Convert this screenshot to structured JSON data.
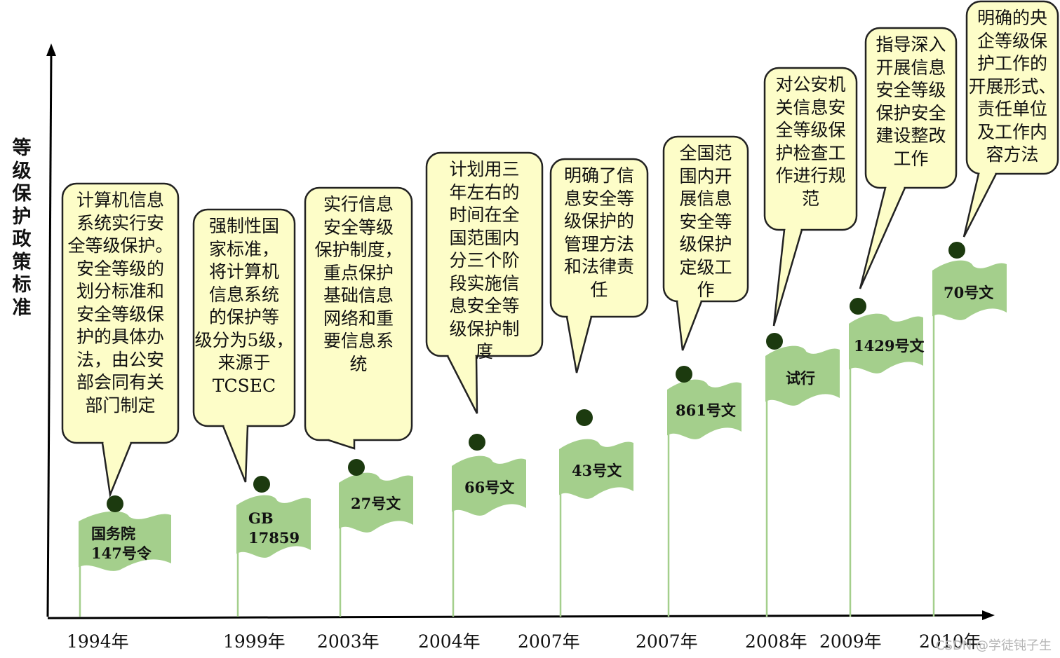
{
  "y_axis_label": "等级保护政策标准",
  "colors": {
    "callout_fill": "#fdfdc8",
    "callout_stroke": "#222222",
    "flag_fill": "#a4cf8c",
    "dot": "#1c3a0f",
    "axis": "#000000",
    "watermark": "#b5b5b5"
  },
  "milestones": [
    {
      "year": "1994年",
      "doc": "国务院\n147号令",
      "callout": "计算机信息\n系统实行安\n全等级保护。\n安全等级的\n划分标准和\n安全等级保\n护的具体办\n法，由公安\n部会同有关\n部门制定"
    },
    {
      "year": "1999年",
      "doc": "GB\n17859",
      "callout": "强制性国\n家标准，\n将计算机\n信息系统\n的保护等\n级分为5级，\n来源于\nTCSEC"
    },
    {
      "year": "2003年",
      "doc": "27号文",
      "callout": "实行信息\n安全等级\n保护制度，\n重点保护\n基础信息\n网络和重\n要信息系\n统"
    },
    {
      "year": "2004年",
      "doc": "66号文",
      "callout": "计划用三\n年左右的\n时间在全\n国范围内\n分三个阶\n段实施信\n息安全等\n级保护制\n度"
    },
    {
      "year": "2007年",
      "doc": "43号文",
      "callout": "明确了信\n息安全等\n级保护的\n管理方法\n和法律责\n任"
    },
    {
      "year": "2007年",
      "doc": "861号文",
      "callout": "全国范\n围内开\n展信息\n安全等\n级保护\n定级工\n作"
    },
    {
      "year": "2008年",
      "doc": "试行",
      "callout": "对公安机\n关信息安\n全等级保\n护检查工\n作进行规\n范"
    },
    {
      "year": "2009年",
      "doc": "1429号文",
      "callout": "指导深入\n开展信息\n安全等级\n保护安全\n建设整改\n工作"
    },
    {
      "year": "2010年",
      "doc": "70号文",
      "callout": "明确的央\n企等级保\n护工作的\n开展形式、\n责任单位\n及工作内\n容方法"
    }
  ],
  "watermark": "CSDN @学徒钝子生"
}
